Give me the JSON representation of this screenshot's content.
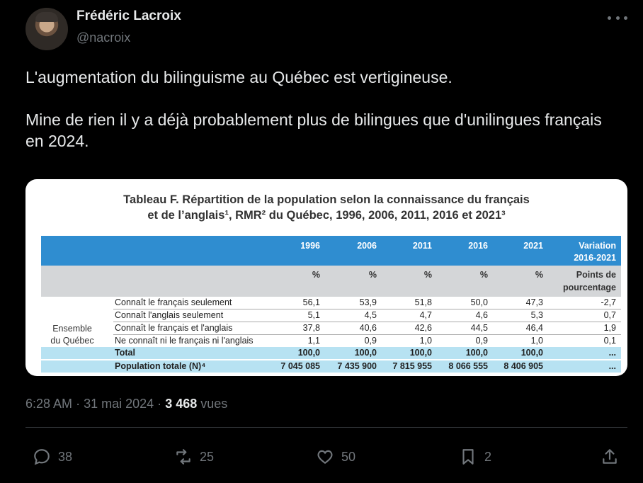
{
  "author": {
    "name": "Frédéric Lacroix",
    "handle": "@nacroix"
  },
  "tweet": {
    "paragraphs": [
      "L'augmentation du bilinguisme au Québec est vertigineuse.",
      "Mine de rien il y a déjà probablement plus de bilingues que d'unilingues français en 2024."
    ]
  },
  "table": {
    "title_line1": "Tableau F. Répartition de la population selon la connaissance du français",
    "title_line2": "et de l’anglais¹, RMR² du Québec, 1996, 2006, 2011, 2016 et 2021³",
    "years": [
      "1996",
      "2006",
      "2011",
      "2016",
      "2021"
    ],
    "variation_line1": "Variation",
    "variation_line2": "2016-2021",
    "unit": "%",
    "variation_unit_line1": "Points de",
    "variation_unit_line2": "pourcentage",
    "group_line1": "Ensemble",
    "group_line2": "du Québec",
    "rows": [
      {
        "label": "Connaît le français seulement",
        "values": [
          "56,1",
          "53,9",
          "51,8",
          "50,0",
          "47,3"
        ],
        "variation": "-2,7"
      },
      {
        "label": "Connaît l'anglais seulement",
        "values": [
          "5,1",
          "4,5",
          "4,7",
          "4,6",
          "5,3"
        ],
        "variation": "0,7"
      },
      {
        "label": "Connaît le français et l'anglais",
        "values": [
          "37,8",
          "40,6",
          "42,6",
          "44,5",
          "46,4"
        ],
        "variation": "1,9"
      },
      {
        "label": "Ne connaît ni le français ni l'anglais",
        "values": [
          "1,1",
          "0,9",
          "1,0",
          "0,9",
          "1,0"
        ],
        "variation": "0,1"
      }
    ],
    "total": {
      "label": "Total",
      "values": [
        "100,0",
        "100,0",
        "100,0",
        "100,0",
        "100,0"
      ],
      "variation": "..."
    },
    "population": {
      "label": "Population totale (N)⁴",
      "values": [
        "7 045 085",
        "7 435 900",
        "7 815 955",
        "8 066 555",
        "8 406 905"
      ],
      "variation": "..."
    }
  },
  "meta": {
    "time": "6:28 AM",
    "sep1": "·",
    "date": "31 mai 2024",
    "sep2": "·",
    "views_count": "3 468",
    "views_label": "vues"
  },
  "actions": {
    "replies": "38",
    "reposts": "25",
    "likes": "50",
    "bookmarks": "2"
  },
  "icons": [
    "more-icon",
    "reply-icon",
    "repost-icon",
    "like-icon",
    "bookmark-icon",
    "share-icon"
  ],
  "colors": {
    "background": "#000000",
    "text": "#e7e9ea",
    "muted": "#71767b",
    "table_header": "#2f8dd0",
    "table_highlight": "#b7e2f2"
  }
}
